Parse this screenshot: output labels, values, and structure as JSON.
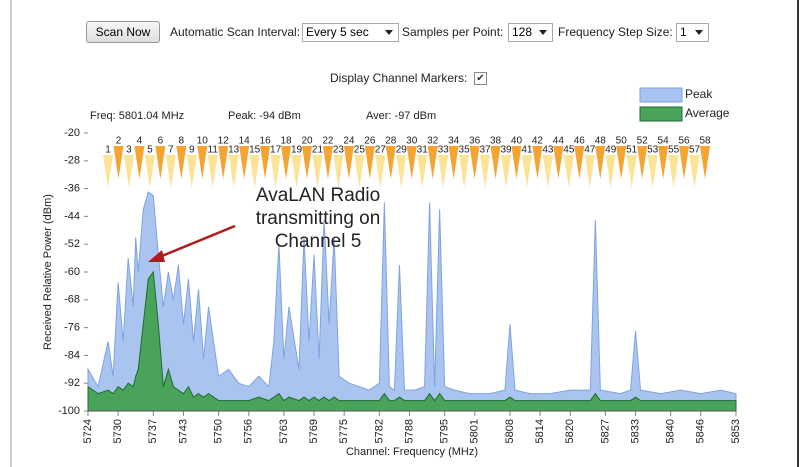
{
  "controls": {
    "scan_button": "Scan Now",
    "interval_label": "Automatic Scan Interval:",
    "interval_value": "Every 5 sec",
    "samples_label": "Samples per Point:",
    "samples_value": "128",
    "step_label": "Frequency Step Size:",
    "step_value": "1",
    "markers_label": "Display Channel Markers:",
    "markers_checked": true
  },
  "info": {
    "freq": "Freq: 5801.04 MHz",
    "peak": "Peak: -94 dBm",
    "aver": "Aver: -97 dBm"
  },
  "chart_data": {
    "type": "area",
    "y_label": "Received Relative Power (dBm)",
    "x_label": "Channel: Frequency (MHz)",
    "annotation": "AvaLAN Radio transmitting on Channel 5",
    "ylim": [
      -100,
      -20
    ],
    "yticks": [
      -20,
      -28,
      -36,
      -44,
      -52,
      -60,
      -68,
      -76,
      -84,
      -92,
      -100
    ],
    "xlim": [
      5724,
      5853
    ],
    "xticks": [
      5724,
      5730,
      5737,
      5743,
      5750,
      5756,
      5763,
      5769,
      5775,
      5782,
      5788,
      5795,
      5801,
      5808,
      5814,
      5820,
      5827,
      5833,
      5840,
      5846,
      5853
    ],
    "channel_markers": [
      1,
      2,
      3,
      4,
      5,
      6,
      7,
      8,
      9,
      10,
      11,
      12,
      13,
      14,
      15,
      16,
      17,
      18,
      19,
      20,
      21,
      22,
      23,
      24,
      25,
      26,
      27,
      28,
      29,
      30,
      31,
      32,
      33,
      34,
      35,
      36,
      37,
      38,
      39,
      40,
      41,
      42,
      43,
      44,
      45,
      46,
      47,
      48,
      49,
      50,
      51,
      52,
      53,
      54,
      55,
      56,
      57,
      58
    ],
    "x": [
      5724,
      5726,
      5728,
      5729,
      5730,
      5731,
      5732,
      5733,
      5733.5,
      5734,
      5735,
      5736,
      5737,
      5738,
      5739,
      5740,
      5741,
      5742,
      5743,
      5744,
      5745,
      5746,
      5747,
      5748,
      5750,
      5752,
      5754,
      5756,
      5758,
      5760,
      5761,
      5762,
      5763,
      5764,
      5766,
      5767,
      5768,
      5769,
      5770,
      5771,
      5772,
      5773,
      5774,
      5776,
      5778,
      5780,
      5782,
      5783,
      5784,
      5785,
      5786,
      5787,
      5789,
      5791,
      5792,
      5793,
      5794,
      5795,
      5797,
      5800,
      5804,
      5807,
      5808,
      5809,
      5812,
      5816,
      5820,
      5824,
      5825,
      5826,
      5830,
      5832,
      5833,
      5834,
      5838,
      5842,
      5846,
      5850,
      5853
    ],
    "series": [
      {
        "name": "Peak",
        "color": "#a9c5ef",
        "values": [
          -88,
          -93,
          -80,
          -90,
          -63,
          -80,
          -56,
          -70,
          -50,
          -60,
          -42,
          -37,
          -38,
          -55,
          -70,
          -60,
          -68,
          -58,
          -75,
          -62,
          -80,
          -65,
          -85,
          -70,
          -90,
          -88,
          -92,
          -93,
          -90,
          -93,
          -80,
          -52,
          -85,
          -70,
          -88,
          -50,
          -80,
          -55,
          -85,
          -45,
          -75,
          -50,
          -90,
          -92,
          -93,
          -94,
          -92,
          -40,
          -93,
          -94,
          -58,
          -94,
          -94,
          -93,
          -40,
          -93,
          -42,
          -93,
          -94,
          -95,
          -95,
          -94,
          -75,
          -94,
          -95,
          -95,
          -94,
          -94,
          -45,
          -94,
          -95,
          -94,
          -77,
          -94,
          -95,
          -94,
          -95,
          -94,
          -95
        ]
      },
      {
        "name": "Average",
        "color": "#4aa35a",
        "values": [
          -93,
          -95,
          -94,
          -95,
          -93,
          -94,
          -92,
          -93,
          -90,
          -88,
          -75,
          -62,
          -60,
          -75,
          -93,
          -88,
          -93,
          -94,
          -95,
          -93,
          -96,
          -95,
          -96,
          -95,
          -97,
          -97,
          -97,
          -97,
          -96,
          -97,
          -96,
          -95,
          -97,
          -96,
          -97,
          -96,
          -97,
          -96,
          -97,
          -96,
          -97,
          -96,
          -97,
          -97,
          -97,
          -97,
          -97,
          -95,
          -97,
          -97,
          -96,
          -97,
          -97,
          -97,
          -95,
          -97,
          -95,
          -97,
          -97,
          -97,
          -97,
          -97,
          -96,
          -97,
          -97,
          -97,
          -97,
          -97,
          -95,
          -97,
          -97,
          -97,
          -96,
          -97,
          -97,
          -97,
          -97,
          -97,
          -97
        ]
      }
    ]
  }
}
